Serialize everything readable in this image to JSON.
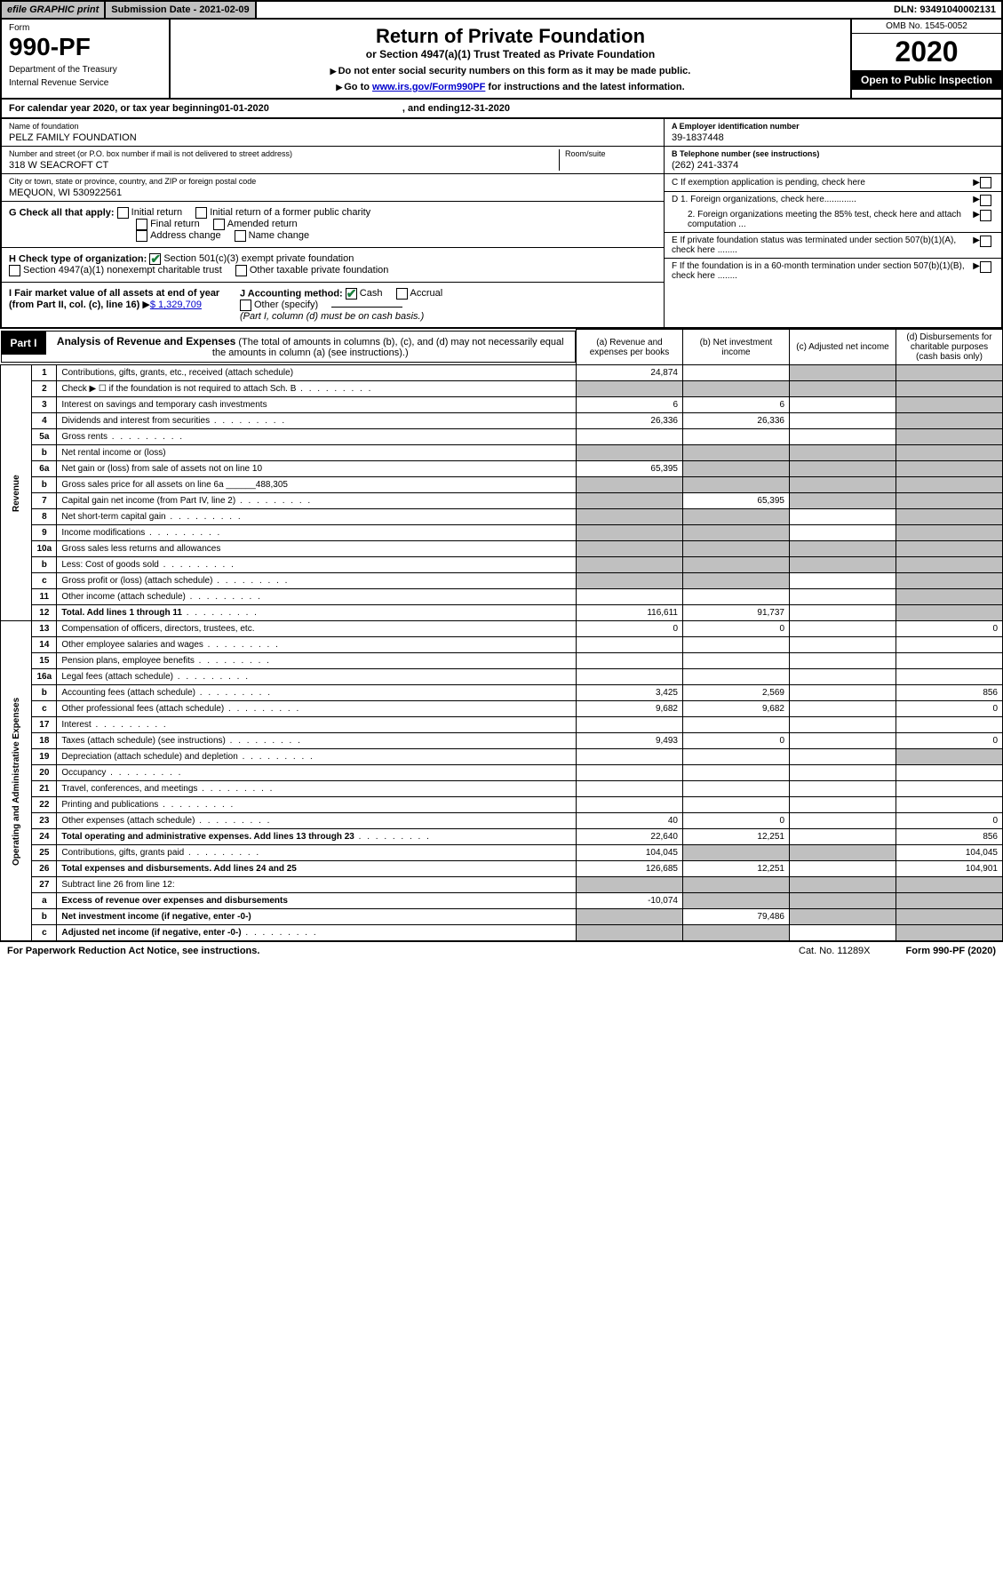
{
  "topbar": {
    "efile": "efile GRAPHIC print",
    "submission": "Submission Date - 2021-02-09",
    "dln": "DLN: 93491040002131"
  },
  "header": {
    "form_label": "Form",
    "form_number": "990-PF",
    "dept1": "Department of the Treasury",
    "dept2": "Internal Revenue Service",
    "title": "Return of Private Foundation",
    "subtitle": "or Section 4947(a)(1) Trust Treated as Private Foundation",
    "instr1": "Do not enter social security numbers on this form as it may be made public.",
    "instr2_pre": "Go to ",
    "instr2_link": "www.irs.gov/Form990PF",
    "instr2_post": " for instructions and the latest information.",
    "omb": "OMB No. 1545-0052",
    "year": "2020",
    "open": "Open to Public Inspection"
  },
  "calyear": {
    "pre": "For calendar year 2020, or tax year beginning ",
    "begin": "01-01-2020",
    "mid": ", and ending ",
    "end": "12-31-2020"
  },
  "foundation": {
    "name_lbl": "Name of foundation",
    "name": "PELZ FAMILY FOUNDATION",
    "addr_lbl": "Number and street (or P.O. box number if mail is not delivered to street address)",
    "addr": "318 W SEACROFT CT",
    "room_lbl": "Room/suite",
    "city_lbl": "City or town, state or province, country, and ZIP or foreign postal code",
    "city": "MEQUON, WI  530922561",
    "ein_lbl": "A Employer identification number",
    "ein": "39-1837448",
    "tel_lbl": "B Telephone number (see instructions)",
    "tel": "(262) 241-3374",
    "c_lbl": "C If exemption application is pending, check here",
    "d1": "D 1. Foreign organizations, check here.............",
    "d2": "2. Foreign organizations meeting the 85% test, check here and attach computation ...",
    "e_lbl": "E If private foundation status was terminated under section 507(b)(1)(A), check here ........",
    "f_lbl": "F If the foundation is in a 60-month termination under section 507(b)(1)(B), check here ........"
  },
  "checks": {
    "g_lbl": "G Check all that apply:",
    "g1": "Initial return",
    "g2": "Initial return of a former public charity",
    "g3": "Final return",
    "g4": "Amended return",
    "g5": "Address change",
    "g6": "Name change",
    "h_lbl": "H Check type of organization:",
    "h1": "Section 501(c)(3) exempt private foundation",
    "h2": "Section 4947(a)(1) nonexempt charitable trust",
    "h3": "Other taxable private foundation",
    "i_lbl": "I Fair market value of all assets at end of year (from Part II, col. (c), line 16)",
    "i_val": "$  1,329,709",
    "j_lbl": "J Accounting method:",
    "j1": "Cash",
    "j2": "Accrual",
    "j3": "Other (specify)",
    "j_note": "(Part I, column (d) must be on cash basis.)"
  },
  "part1": {
    "label": "Part I",
    "title": "Analysis of Revenue and Expenses",
    "title_note": "(The total of amounts in columns (b), (c), and (d) may not necessarily equal the amounts in column (a) (see instructions).)",
    "col_a": "(a)   Revenue and expenses per books",
    "col_b": "(b)  Net investment income",
    "col_c": "(c)  Adjusted net income",
    "col_d": "(d)  Disbursements for charitable purposes (cash basis only)"
  },
  "sections": {
    "revenue": "Revenue",
    "expenses": "Operating and Administrative Expenses"
  },
  "rows": [
    {
      "n": "1",
      "d": "Contributions, gifts, grants, etc., received (attach schedule)",
      "a": "24,874",
      "b": "",
      "c": "grey",
      "dd": "grey"
    },
    {
      "n": "2",
      "d": "Check ▶ ☐ if the foundation is not required to attach Sch. B",
      "a": "grey",
      "b": "grey",
      "c": "grey",
      "dd": "grey",
      "dots": true
    },
    {
      "n": "3",
      "d": "Interest on savings and temporary cash investments",
      "a": "6",
      "b": "6",
      "c": "",
      "dd": "grey"
    },
    {
      "n": "4",
      "d": "Dividends and interest from securities",
      "a": "26,336",
      "b": "26,336",
      "c": "",
      "dd": "grey",
      "dots": true
    },
    {
      "n": "5a",
      "d": "Gross rents",
      "a": "",
      "b": "",
      "c": "",
      "dd": "grey",
      "dots": true
    },
    {
      "n": "b",
      "d": "Net rental income or (loss)",
      "a": "grey",
      "b": "grey",
      "c": "grey",
      "dd": "grey",
      "inline": true
    },
    {
      "n": "6a",
      "d": "Net gain or (loss) from sale of assets not on line 10",
      "a": "65,395",
      "b": "grey",
      "c": "grey",
      "dd": "grey"
    },
    {
      "n": "b",
      "d": "Gross sales price for all assets on line 6a ______488,305",
      "a": "grey",
      "b": "grey",
      "c": "grey",
      "dd": "grey"
    },
    {
      "n": "7",
      "d": "Capital gain net income (from Part IV, line 2)",
      "a": "grey",
      "b": "65,395",
      "c": "grey",
      "dd": "grey",
      "dots": true
    },
    {
      "n": "8",
      "d": "Net short-term capital gain",
      "a": "grey",
      "b": "grey",
      "c": "",
      "dd": "grey",
      "dots": true
    },
    {
      "n": "9",
      "d": "Income modifications",
      "a": "grey",
      "b": "grey",
      "c": "",
      "dd": "grey",
      "dots": true
    },
    {
      "n": "10a",
      "d": "Gross sales less returns and allowances",
      "a": "grey",
      "b": "grey",
      "c": "grey",
      "dd": "grey",
      "inline": true
    },
    {
      "n": "b",
      "d": "Less: Cost of goods sold",
      "a": "grey",
      "b": "grey",
      "c": "grey",
      "dd": "grey",
      "inline": true,
      "dots": true
    },
    {
      "n": "c",
      "d": "Gross profit or (loss) (attach schedule)",
      "a": "grey",
      "b": "grey",
      "c": "",
      "dd": "grey",
      "dots": true
    },
    {
      "n": "11",
      "d": "Other income (attach schedule)",
      "a": "",
      "b": "",
      "c": "",
      "dd": "grey",
      "dots": true
    },
    {
      "n": "12",
      "d": "Total. Add lines 1 through 11",
      "a": "116,611",
      "b": "91,737",
      "c": "",
      "dd": "grey",
      "bold": true,
      "dots": true
    }
  ],
  "exp_rows": [
    {
      "n": "13",
      "d": "Compensation of officers, directors, trustees, etc.",
      "a": "0",
      "b": "0",
      "c": "",
      "dd": "0"
    },
    {
      "n": "14",
      "d": "Other employee salaries and wages",
      "a": "",
      "b": "",
      "c": "",
      "dd": "",
      "dots": true
    },
    {
      "n": "15",
      "d": "Pension plans, employee benefits",
      "a": "",
      "b": "",
      "c": "",
      "dd": "",
      "dots": true
    },
    {
      "n": "16a",
      "d": "Legal fees (attach schedule)",
      "a": "",
      "b": "",
      "c": "",
      "dd": "",
      "dots": true
    },
    {
      "n": "b",
      "d": "Accounting fees (attach schedule)",
      "a": "3,425",
      "b": "2,569",
      "c": "",
      "dd": "856",
      "dots": true
    },
    {
      "n": "c",
      "d": "Other professional fees (attach schedule)",
      "a": "9,682",
      "b": "9,682",
      "c": "",
      "dd": "0",
      "dots": true
    },
    {
      "n": "17",
      "d": "Interest",
      "a": "",
      "b": "",
      "c": "",
      "dd": "",
      "dots": true
    },
    {
      "n": "18",
      "d": "Taxes (attach schedule) (see instructions)",
      "a": "9,493",
      "b": "0",
      "c": "",
      "dd": "0",
      "dots": true
    },
    {
      "n": "19",
      "d": "Depreciation (attach schedule) and depletion",
      "a": "",
      "b": "",
      "c": "",
      "dd": "grey",
      "dots": true
    },
    {
      "n": "20",
      "d": "Occupancy",
      "a": "",
      "b": "",
      "c": "",
      "dd": "",
      "dots": true
    },
    {
      "n": "21",
      "d": "Travel, conferences, and meetings",
      "a": "",
      "b": "",
      "c": "",
      "dd": "",
      "dots": true
    },
    {
      "n": "22",
      "d": "Printing and publications",
      "a": "",
      "b": "",
      "c": "",
      "dd": "",
      "dots": true
    },
    {
      "n": "23",
      "d": "Other expenses (attach schedule)",
      "a": "40",
      "b": "0",
      "c": "",
      "dd": "0",
      "dots": true
    },
    {
      "n": "24",
      "d": "Total operating and administrative expenses. Add lines 13 through 23",
      "a": "22,640",
      "b": "12,251",
      "c": "",
      "dd": "856",
      "bold": true,
      "dots": true
    },
    {
      "n": "25",
      "d": "Contributions, gifts, grants paid",
      "a": "104,045",
      "b": "grey",
      "c": "grey",
      "dd": "104,045",
      "dots": true
    },
    {
      "n": "26",
      "d": "Total expenses and disbursements. Add lines 24 and 25",
      "a": "126,685",
      "b": "12,251",
      "c": "",
      "dd": "104,901",
      "bold": true
    },
    {
      "n": "27",
      "d": "Subtract line 26 from line 12:",
      "a": "grey",
      "b": "grey",
      "c": "grey",
      "dd": "grey"
    },
    {
      "n": "a",
      "d": "Excess of revenue over expenses and disbursements",
      "a": "-10,074",
      "b": "grey",
      "c": "grey",
      "dd": "grey",
      "bold": true
    },
    {
      "n": "b",
      "d": "Net investment income (if negative, enter -0-)",
      "a": "grey",
      "b": "79,486",
      "c": "grey",
      "dd": "grey",
      "bold": true
    },
    {
      "n": "c",
      "d": "Adjusted net income (if negative, enter -0-)",
      "a": "grey",
      "b": "grey",
      "c": "",
      "dd": "grey",
      "bold": true,
      "dots": true
    }
  ],
  "footer": {
    "left": "For Paperwork Reduction Act Notice, see instructions.",
    "cat": "Cat. No. 11289X",
    "right": "Form 990-PF (2020)"
  }
}
